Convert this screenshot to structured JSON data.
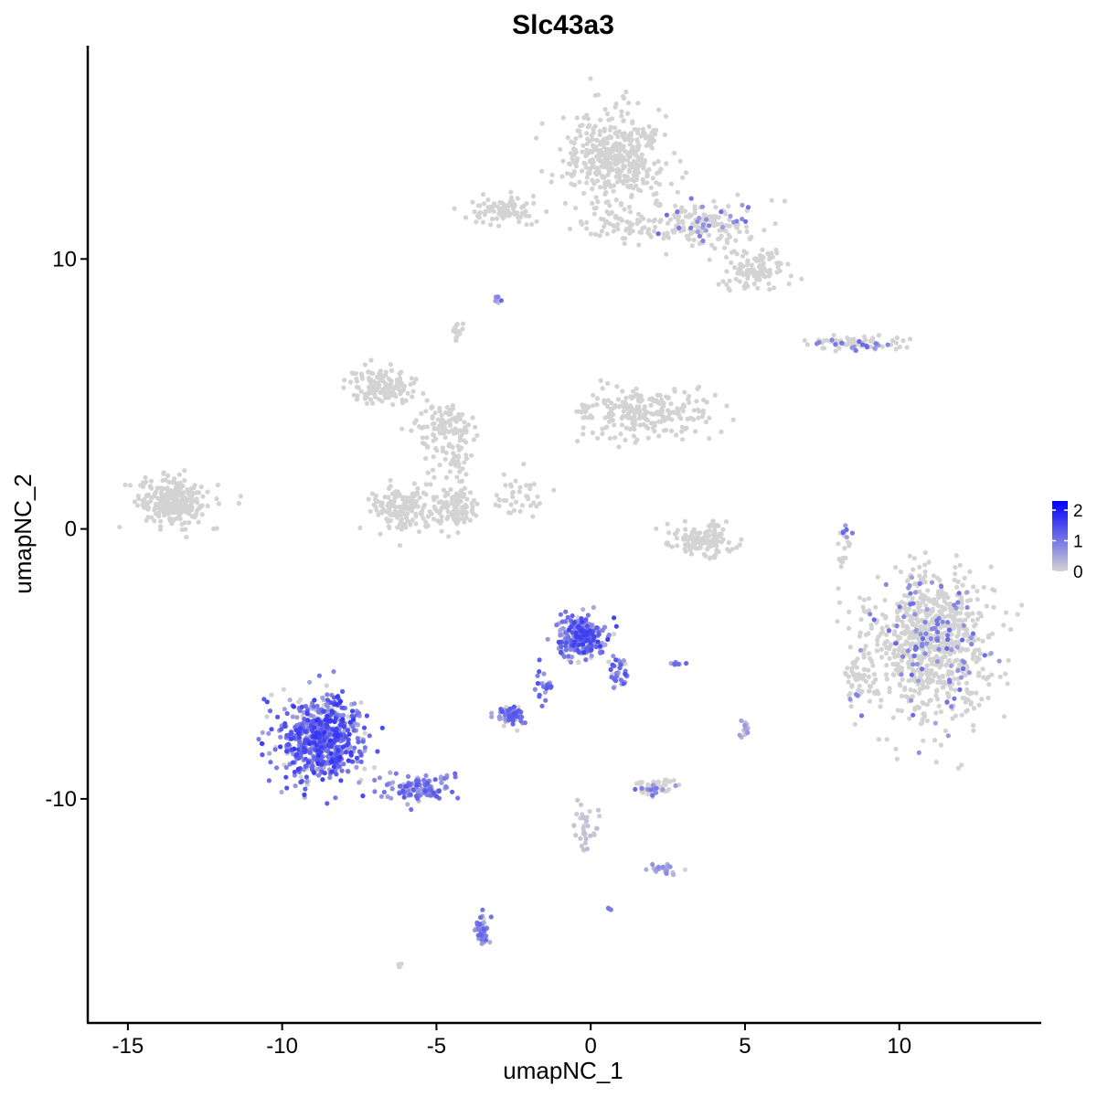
{
  "chart_data": {
    "type": "scatter",
    "title": "Slc43a3",
    "xlabel": "umapNC_1",
    "ylabel": "umapNC_2",
    "xlim": [
      -16.3,
      14.6
    ],
    "ylim": [
      -18.3,
      17.9
    ],
    "x_ticks": [
      -15,
      -10,
      -5,
      0,
      5,
      10
    ],
    "x_tick_labels": [
      "-15",
      "-10",
      "-5",
      "0",
      "5",
      "10"
    ],
    "y_ticks": [
      10,
      0,
      -10
    ],
    "y_tick_labels": [
      "10",
      "0",
      "-10"
    ],
    "grid": false,
    "legend": {
      "position": "right",
      "min": 0,
      "max": 2.3,
      "ticks": [
        2,
        1,
        0
      ],
      "tick_labels": [
        "2",
        "1",
        "0"
      ],
      "color_low": "#d3d3d3",
      "color_high": "#0000ff"
    },
    "clusters": [
      {
        "cx": 0.8,
        "cy": 13.8,
        "sx": 1.5,
        "sy": 1.5,
        "n": 420,
        "expr": 0.0
      },
      {
        "cx": 3.8,
        "cy": 11.3,
        "sx": 1.5,
        "sy": 0.8,
        "n": 160,
        "expr": 0.02
      },
      {
        "cx": 5.3,
        "cy": 9.6,
        "sx": 0.9,
        "sy": 0.6,
        "n": 120,
        "expr": 0.0
      },
      {
        "cx": -2.7,
        "cy": 11.8,
        "sx": 1.0,
        "sy": 0.5,
        "n": 90,
        "expr": 0.0
      },
      {
        "cx": 1.2,
        "cy": 11.3,
        "sx": 1.5,
        "sy": 0.6,
        "n": 70,
        "expr": 0.0
      },
      {
        "cx": 8.6,
        "cy": 6.9,
        "sx": 1.4,
        "sy": 0.25,
        "n": 80,
        "expr": 0.05
      },
      {
        "cx": -13.5,
        "cy": 1.0,
        "sx": 1.0,
        "sy": 0.8,
        "n": 260,
        "expr": 0.0
      },
      {
        "cx": -6.8,
        "cy": 5.3,
        "sx": 1.0,
        "sy": 0.6,
        "n": 130,
        "expr": 0.0
      },
      {
        "cx": -4.8,
        "cy": 3.8,
        "sx": 0.8,
        "sy": 0.7,
        "n": 100,
        "expr": 0.0
      },
      {
        "cx": 1.8,
        "cy": 4.3,
        "sx": 2.0,
        "sy": 0.9,
        "n": 240,
        "expr": 0.0
      },
      {
        "cx": -6.0,
        "cy": 0.8,
        "sx": 1.0,
        "sy": 0.8,
        "n": 170,
        "expr": 0.0
      },
      {
        "cx": -4.4,
        "cy": 0.7,
        "sx": 0.6,
        "sy": 0.7,
        "n": 110,
        "expr": 0.0
      },
      {
        "cx": -4.5,
        "cy": 2.5,
        "sx": 0.5,
        "sy": 0.9,
        "n": 50,
        "expr": 0.0
      },
      {
        "cx": 3.6,
        "cy": -0.4,
        "sx": 1.0,
        "sy": 0.6,
        "n": 130,
        "expr": 0.0
      },
      {
        "cx": 11.0,
        "cy": -4.3,
        "sx": 1.8,
        "sy": 2.3,
        "n": 850,
        "expr": 0.02
      },
      {
        "cx": 8.7,
        "cy": -5.8,
        "sx": 0.4,
        "sy": 1.0,
        "n": 40,
        "expr": 0.02
      },
      {
        "cx": -8.7,
        "cy": -7.8,
        "sx": 1.2,
        "sy": 1.4,
        "n": 650,
        "expr": 1.05
      },
      {
        "cx": -5.5,
        "cy": -9.6,
        "sx": 1.0,
        "sy": 0.45,
        "n": 130,
        "expr": 0.85
      },
      {
        "cx": -0.3,
        "cy": -4.0,
        "sx": 0.7,
        "sy": 0.7,
        "n": 260,
        "expr": 1.0
      },
      {
        "cx": 0.9,
        "cy": -5.3,
        "sx": 0.3,
        "sy": 0.5,
        "n": 40,
        "expr": 0.9
      },
      {
        "cx": -2.6,
        "cy": -6.9,
        "sx": 0.4,
        "sy": 0.3,
        "n": 75,
        "expr": 0.85
      },
      {
        "cx": -1.5,
        "cy": -5.8,
        "sx": 0.3,
        "sy": 0.5,
        "n": 20,
        "expr": 0.9
      },
      {
        "cx": 2.1,
        "cy": -9.6,
        "sx": 0.5,
        "sy": 0.3,
        "n": 60,
        "expr": 0.02
      },
      {
        "cx": -3.5,
        "cy": -14.8,
        "sx": 0.2,
        "sy": 0.5,
        "n": 50,
        "expr": 0.75
      },
      {
        "cx": 2.3,
        "cy": -12.6,
        "sx": 0.4,
        "sy": 0.2,
        "n": 25,
        "expr": 0.5
      },
      {
        "cx": -0.2,
        "cy": -11.0,
        "sx": 0.4,
        "sy": 0.9,
        "n": 35,
        "expr": 0.15
      },
      {
        "cx": 5.0,
        "cy": -7.4,
        "sx": 0.15,
        "sy": 0.3,
        "n": 15,
        "expr": 0.4
      },
      {
        "cx": 2.8,
        "cy": -5.0,
        "sx": 0.2,
        "sy": 0.1,
        "n": 10,
        "expr": 0.9
      },
      {
        "cx": 8.2,
        "cy": -0.5,
        "sx": 0.2,
        "sy": 0.8,
        "n": 20,
        "expr": 0.05
      },
      {
        "cx": -4.3,
        "cy": 7.3,
        "sx": 0.2,
        "sy": 0.3,
        "n": 15,
        "expr": 0.0
      },
      {
        "cx": -3.0,
        "cy": 8.5,
        "sx": 0.15,
        "sy": 0.15,
        "n": 8,
        "expr": 0.7
      },
      {
        "cx": -2.2,
        "cy": 1.3,
        "sx": 0.9,
        "sy": 0.8,
        "n": 40,
        "expr": 0.0
      },
      {
        "cx": 0.6,
        "cy": -14.1,
        "sx": 0.1,
        "sy": 0.1,
        "n": 5,
        "expr": 0.6
      },
      {
        "cx": -6.2,
        "cy": -16.2,
        "sx": 0.1,
        "sy": 0.08,
        "n": 5,
        "expr": 0.0
      }
    ]
  }
}
